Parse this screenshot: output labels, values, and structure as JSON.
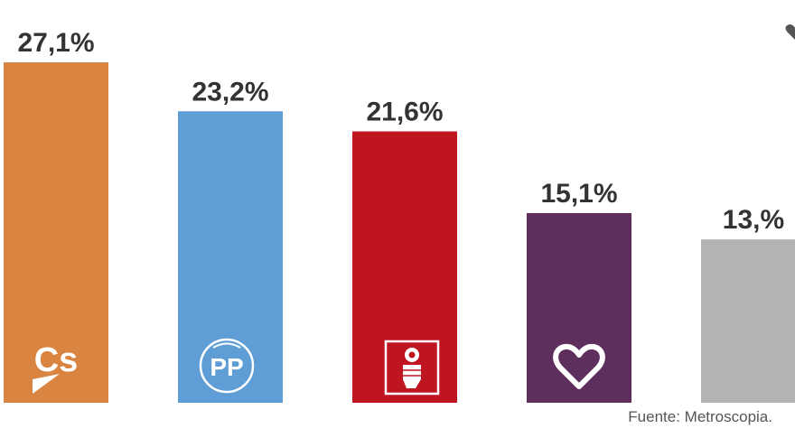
{
  "chart_data": {
    "type": "bar",
    "categories": [
      "Cs",
      "PP",
      "PSOE",
      "Podemos",
      ""
    ],
    "values": [
      27.1,
      23.2,
      21.6,
      15.1,
      13.0
    ],
    "value_labels": [
      "27,1%",
      "23,2%",
      "21,6%",
      "15,1%",
      "13,%"
    ],
    "colors": [
      "#d98440",
      "#5e9dd6",
      "#be1520",
      "#5e2e5c",
      "#b3b3b5"
    ],
    "icons": [
      "cs-logo-icon",
      "pp-logo-icon",
      "psoe-rose-icon",
      "heart-icon",
      ""
    ],
    "title": "",
    "xlabel": "",
    "ylabel": "",
    "ylim": [
      0,
      27.1
    ],
    "grid": false,
    "legend": "none"
  },
  "source": "Fuente: Metroscopia."
}
